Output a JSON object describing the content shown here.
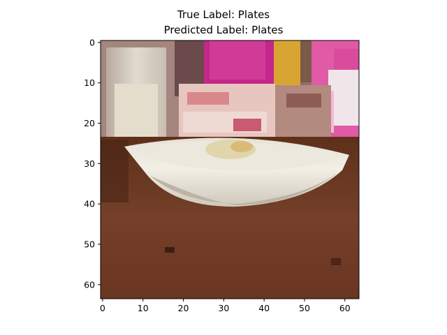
{
  "figure": {
    "title_line_1": "True Label: Plates",
    "title_line_2": "Predicted Label: Plates"
  },
  "image_axes": {
    "x_ticks": [
      0,
      10,
      20,
      30,
      40,
      50,
      60
    ],
    "y_ticks": [
      0,
      10,
      20,
      30,
      40,
      50,
      60
    ],
    "x_range": [
      -0.5,
      63.5
    ],
    "y_range": [
      -0.5,
      63.5
    ],
    "pixel_grid": 64
  },
  "image": {
    "subject": "white bowl on a wooden table",
    "colors": {
      "table": "#6e3a22",
      "table_dark": "#5a2c1a",
      "bowl": "#eeeae0",
      "bowl_shadow": "#c9c2b4",
      "wall": "#9b7a74",
      "magenta": "#c4268a",
      "pink": "#e15aa6",
      "yellow": "#d9a532",
      "box": "#e8c6c0",
      "glass": "#d6cfc4"
    }
  }
}
